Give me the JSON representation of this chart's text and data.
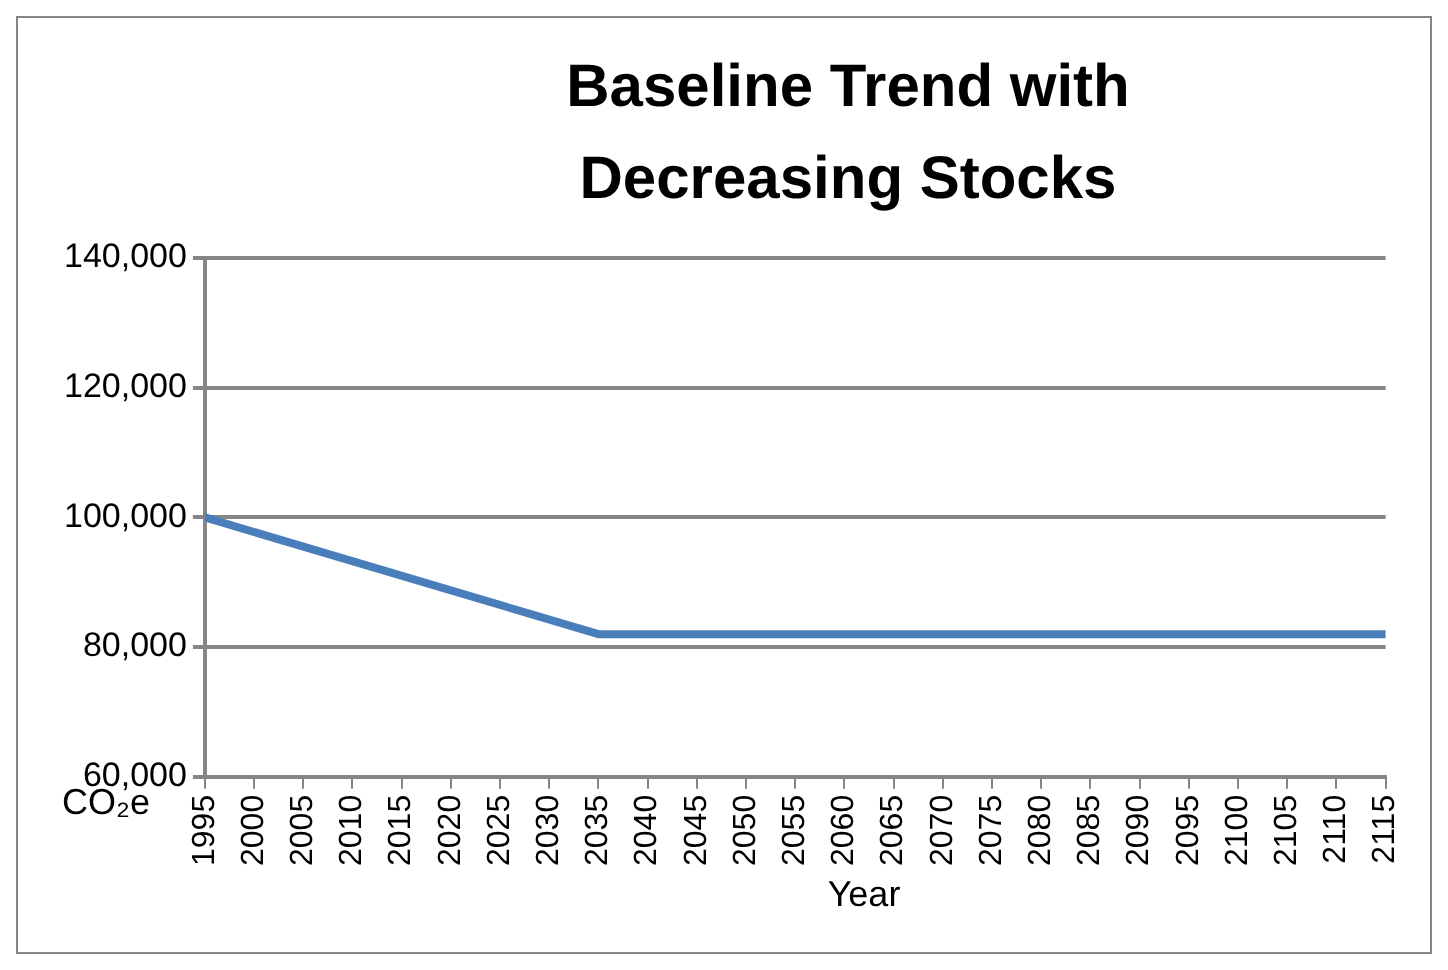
{
  "chart_data": {
    "type": "line",
    "title": "Baseline Trend with Decreasing Stocks",
    "xlabel": "Year",
    "ylabel": "CO₂e",
    "x": [
      1995,
      2035,
      2115
    ],
    "series": [
      {
        "color": "#4a7ebb",
        "values": [
          100000,
          82000,
          82000
        ]
      }
    ],
    "xlim": [
      1995,
      2115
    ],
    "xticks": [
      1995,
      2000,
      2005,
      2010,
      2015,
      2020,
      2025,
      2030,
      2035,
      2040,
      2045,
      2050,
      2055,
      2060,
      2065,
      2070,
      2075,
      2080,
      2085,
      2090,
      2095,
      2100,
      2105,
      2110,
      2115
    ],
    "ylim": [
      60000,
      140000
    ],
    "yticks": [
      {
        "value": 60000,
        "label": "60,000"
      },
      {
        "value": 80000,
        "label": "80,000"
      },
      {
        "value": 100000,
        "label": "100,000"
      },
      {
        "value": 120000,
        "label": "120,000"
      },
      {
        "value": 140000,
        "label": "140,000"
      }
    ],
    "grid": "y",
    "legend": false,
    "marker": "none",
    "line_style": "solid"
  }
}
